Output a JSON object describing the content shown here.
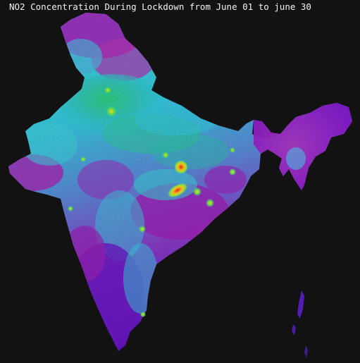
{
  "title": "NO2 Concentration During Lockdown from June 01 to june 30",
  "colors": {
    "background": "#121212",
    "low": "#7a10c0",
    "low_mid": "#b020b8",
    "mid": "#2fc6e6",
    "mid_high": "#3fe0d8",
    "high": "#24b04a",
    "hotspot_outer": "#d8e52a",
    "hotspot_core": "#e8201a"
  },
  "map": {
    "region": "India",
    "colormap": [
      "purple",
      "cyan",
      "green",
      "yellow",
      "red"
    ]
  }
}
